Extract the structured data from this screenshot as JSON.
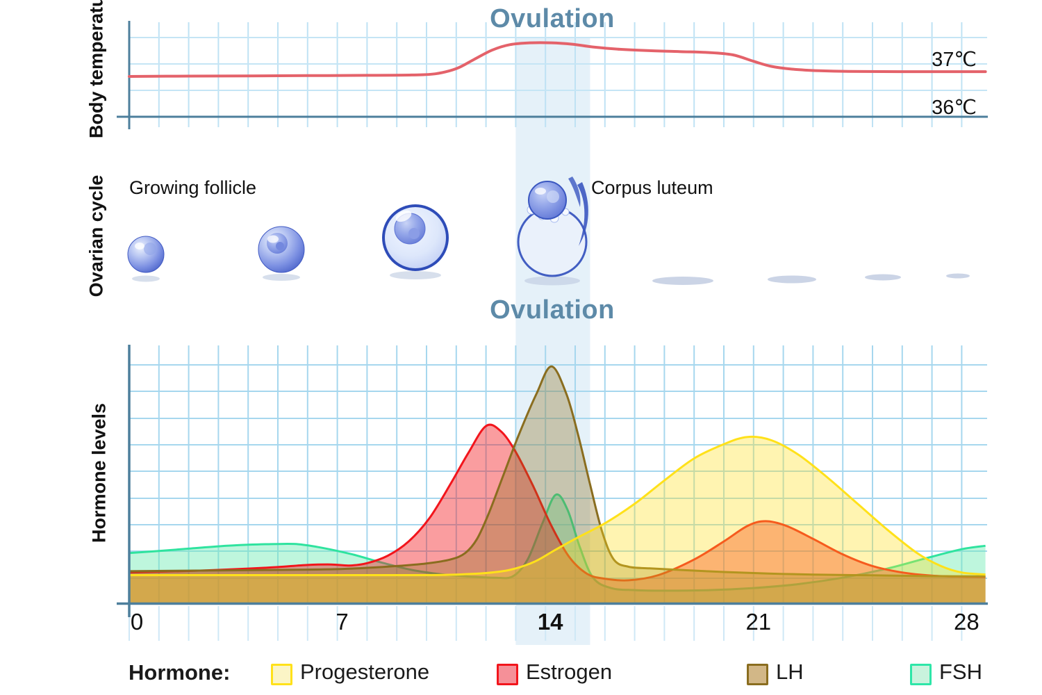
{
  "titles": {
    "ovulation_top": "Ovulation",
    "ovulation_mid": "Ovulation"
  },
  "temperature_panel": {
    "ylabel": "Body temperature",
    "tick_high": "37℃",
    "tick_low": "36℃"
  },
  "ovarian_panel": {
    "ylabel": "Ovarian cycle",
    "growing_follicle_label": "Growing follicle",
    "corpus_luteum_label": "Corpus luteum"
  },
  "hormone_panel": {
    "ylabel": "Hormone levels"
  },
  "legend": {
    "title": "Hormone:",
    "items": [
      {
        "label": "Progesterone",
        "border": "#ffe11a",
        "fill": "#fbf5c6"
      },
      {
        "label": "Estrogen",
        "border": "#f2151c",
        "fill": "#f59098"
      },
      {
        "label": "LH",
        "border": "#8a6d1f",
        "fill": "#d2b787"
      },
      {
        "label": "FSH",
        "border": "#2ee6a8",
        "fill": "#c9f3dd"
      }
    ]
  },
  "chart_data": [
    {
      "id": "body-temperature",
      "type": "line",
      "title": "Ovulation",
      "ylabel": "Body temperature",
      "x_range": [
        0,
        28.8
      ],
      "y_tick_labels": [
        "37℃",
        "36℃"
      ],
      "grid": true,
      "series": [
        {
          "name": "Basal body temperature",
          "color": "#e4626a",
          "points": [
            [
              0,
              43.6
            ],
            [
              2,
              44
            ],
            [
              4,
              44.2
            ],
            [
              6,
              44.5
            ],
            [
              8,
              44.8
            ],
            [
              9.5,
              45.2
            ],
            [
              10.3,
              46.5
            ],
            [
              11,
              52
            ],
            [
              11.6,
              62
            ],
            [
              12.2,
              72
            ],
            [
              12.8,
              78
            ],
            [
              13.5,
              80
            ],
            [
              14.2,
              80
            ],
            [
              14.9,
              78.5
            ],
            [
              15.6,
              75.5
            ],
            [
              16.5,
              73
            ],
            [
              17.5,
              71.5
            ],
            [
              18.5,
              70.5
            ],
            [
              19.5,
              69.5
            ],
            [
              20.3,
              67
            ],
            [
              21,
              60
            ],
            [
              21.6,
              54.5
            ],
            [
              22.3,
              51.5
            ],
            [
              23.2,
              49.8
            ],
            [
              24.2,
              49
            ],
            [
              26,
              48.8
            ],
            [
              28.8,
              48.8
            ]
          ]
        }
      ]
    },
    {
      "id": "hormone-levels",
      "type": "area",
      "ylabel": "Hormone levels",
      "x_range": [
        0,
        28.8
      ],
      "x_ticks": [
        {
          "label": "0",
          "day": 0,
          "bold": false
        },
        {
          "label": "7",
          "day": 7,
          "bold": false
        },
        {
          "label": "14",
          "day": 14,
          "bold": true
        },
        {
          "label": "21",
          "day": 21,
          "bold": false
        },
        {
          "label": "28",
          "day": 28,
          "bold": false
        }
      ],
      "highlight_band": {
        "label": "Ovulation",
        "from_day": 13,
        "to_day": 15.5
      },
      "grid": true,
      "series": [
        {
          "name": "FSH",
          "color": "#2fe39f",
          "fill": "rgba(110,235,180,0.45)",
          "points": [
            [
              0,
              19.5
            ],
            [
              1,
              20.3
            ],
            [
              2,
              21.2
            ],
            [
              3,
              22.1
            ],
            [
              4,
              22.7
            ],
            [
              5,
              23
            ],
            [
              5.7,
              22.9
            ],
            [
              6.5,
              21.5
            ],
            [
              7.5,
              19
            ],
            [
              8.5,
              15.8
            ],
            [
              9.5,
              13
            ],
            [
              10.5,
              11.3
            ],
            [
              11.5,
              10.4
            ],
            [
              12.3,
              10
            ],
            [
              12.9,
              10.5
            ],
            [
              13.4,
              17
            ],
            [
              13.9,
              31
            ],
            [
              14.35,
              42
            ],
            [
              14.75,
              36
            ],
            [
              15.15,
              22
            ],
            [
              15.6,
              10
            ],
            [
              16.2,
              6
            ],
            [
              17,
              5.2
            ],
            [
              18,
              5
            ],
            [
              19.5,
              5.2
            ],
            [
              21,
              6
            ],
            [
              22.5,
              7.5
            ],
            [
              24,
              10
            ],
            [
              25.5,
              13.5
            ],
            [
              26.8,
              17.5
            ],
            [
              28,
              21
            ],
            [
              28.8,
              22.3
            ]
          ]
        },
        {
          "name": "Estrogen",
          "color": "#f2151c",
          "fill": "rgba(242,21,26,0.42)",
          "points": [
            [
              0,
              12
            ],
            [
              1,
              12.3
            ],
            [
              2,
              12.6
            ],
            [
              3,
              13
            ],
            [
              4,
              13.5
            ],
            [
              5,
              14.1
            ],
            [
              6,
              14.9
            ],
            [
              6.8,
              15.1
            ],
            [
              7.4,
              14.7
            ],
            [
              8,
              15.6
            ],
            [
              8.7,
              18.5
            ],
            [
              9.4,
              24
            ],
            [
              10.1,
              33
            ],
            [
              10.8,
              46
            ],
            [
              11.4,
              58
            ],
            [
              12,
              68.5
            ],
            [
              12.5,
              66.5
            ],
            [
              13,
              58.5
            ],
            [
              13.6,
              45
            ],
            [
              14.2,
              30
            ],
            [
              14.8,
              18
            ],
            [
              15.4,
              11.5
            ],
            [
              16,
              9.6
            ],
            [
              16.8,
              9
            ],
            [
              17.8,
              11
            ],
            [
              19,
              17
            ],
            [
              20,
              24
            ],
            [
              20.8,
              30
            ],
            [
              21.4,
              31.8
            ],
            [
              22.1,
              30
            ],
            [
              23,
              25
            ],
            [
              24,
              19
            ],
            [
              25,
              14.5
            ],
            [
              26,
              12
            ],
            [
              27,
              10.8
            ],
            [
              28,
              10.4
            ],
            [
              28.8,
              10.3
            ]
          ]
        },
        {
          "name": "LH",
          "color": "#8a6d1f",
          "fill": "rgba(139,109,24,0.33)",
          "points": [
            [
              0,
              12.5
            ],
            [
              2,
              12.7
            ],
            [
              4,
              12.9
            ],
            [
              6,
              13.1
            ],
            [
              7,
              13.3
            ],
            [
              8,
              13.8
            ],
            [
              9,
              14.5
            ],
            [
              10,
              15.5
            ],
            [
              10.8,
              17
            ],
            [
              11.3,
              19.5
            ],
            [
              11.7,
              25
            ],
            [
              12.1,
              35
            ],
            [
              12.6,
              50
            ],
            [
              13.1,
              65
            ],
            [
              13.7,
              81
            ],
            [
              14.2,
              91.5
            ],
            [
              14.7,
              81
            ],
            [
              15.1,
              65
            ],
            [
              15.5,
              46
            ],
            [
              15.9,
              28
            ],
            [
              16.3,
              17
            ],
            [
              16.8,
              14.2
            ],
            [
              17.5,
              13.6
            ],
            [
              18.5,
              13
            ],
            [
              20,
              12.2
            ],
            [
              21.5,
              11.6
            ],
            [
              23,
              11.2
            ],
            [
              25,
              10.9
            ],
            [
              27,
              10.6
            ],
            [
              28.8,
              10.5
            ]
          ]
        },
        {
          "name": "Progesterone",
          "color": "#ffe11a",
          "fill": "rgba(255,224,32,0.35)",
          "points": [
            [
              0,
              11
            ],
            [
              2,
              11
            ],
            [
              4,
              11
            ],
            [
              6,
              11
            ],
            [
              8,
              11
            ],
            [
              10,
              11
            ],
            [
              11,
              11.2
            ],
            [
              12,
              11.8
            ],
            [
              12.8,
              13
            ],
            [
              13.6,
              16
            ],
            [
              14.3,
              20.5
            ],
            [
              15,
              25
            ],
            [
              16,
              31
            ],
            [
              17,
              38.5
            ],
            [
              18,
              47.5
            ],
            [
              19,
              56
            ],
            [
              20,
              61.5
            ],
            [
              20.8,
              64.3
            ],
            [
              21.6,
              63
            ],
            [
              22.5,
              57.5
            ],
            [
              23.5,
              48.5
            ],
            [
              24.5,
              38.5
            ],
            [
              25.5,
              28.5
            ],
            [
              26.5,
              19.5
            ],
            [
              27.3,
              14.5
            ],
            [
              28,
              12
            ],
            [
              28.8,
              11.2
            ]
          ]
        }
      ]
    }
  ]
}
